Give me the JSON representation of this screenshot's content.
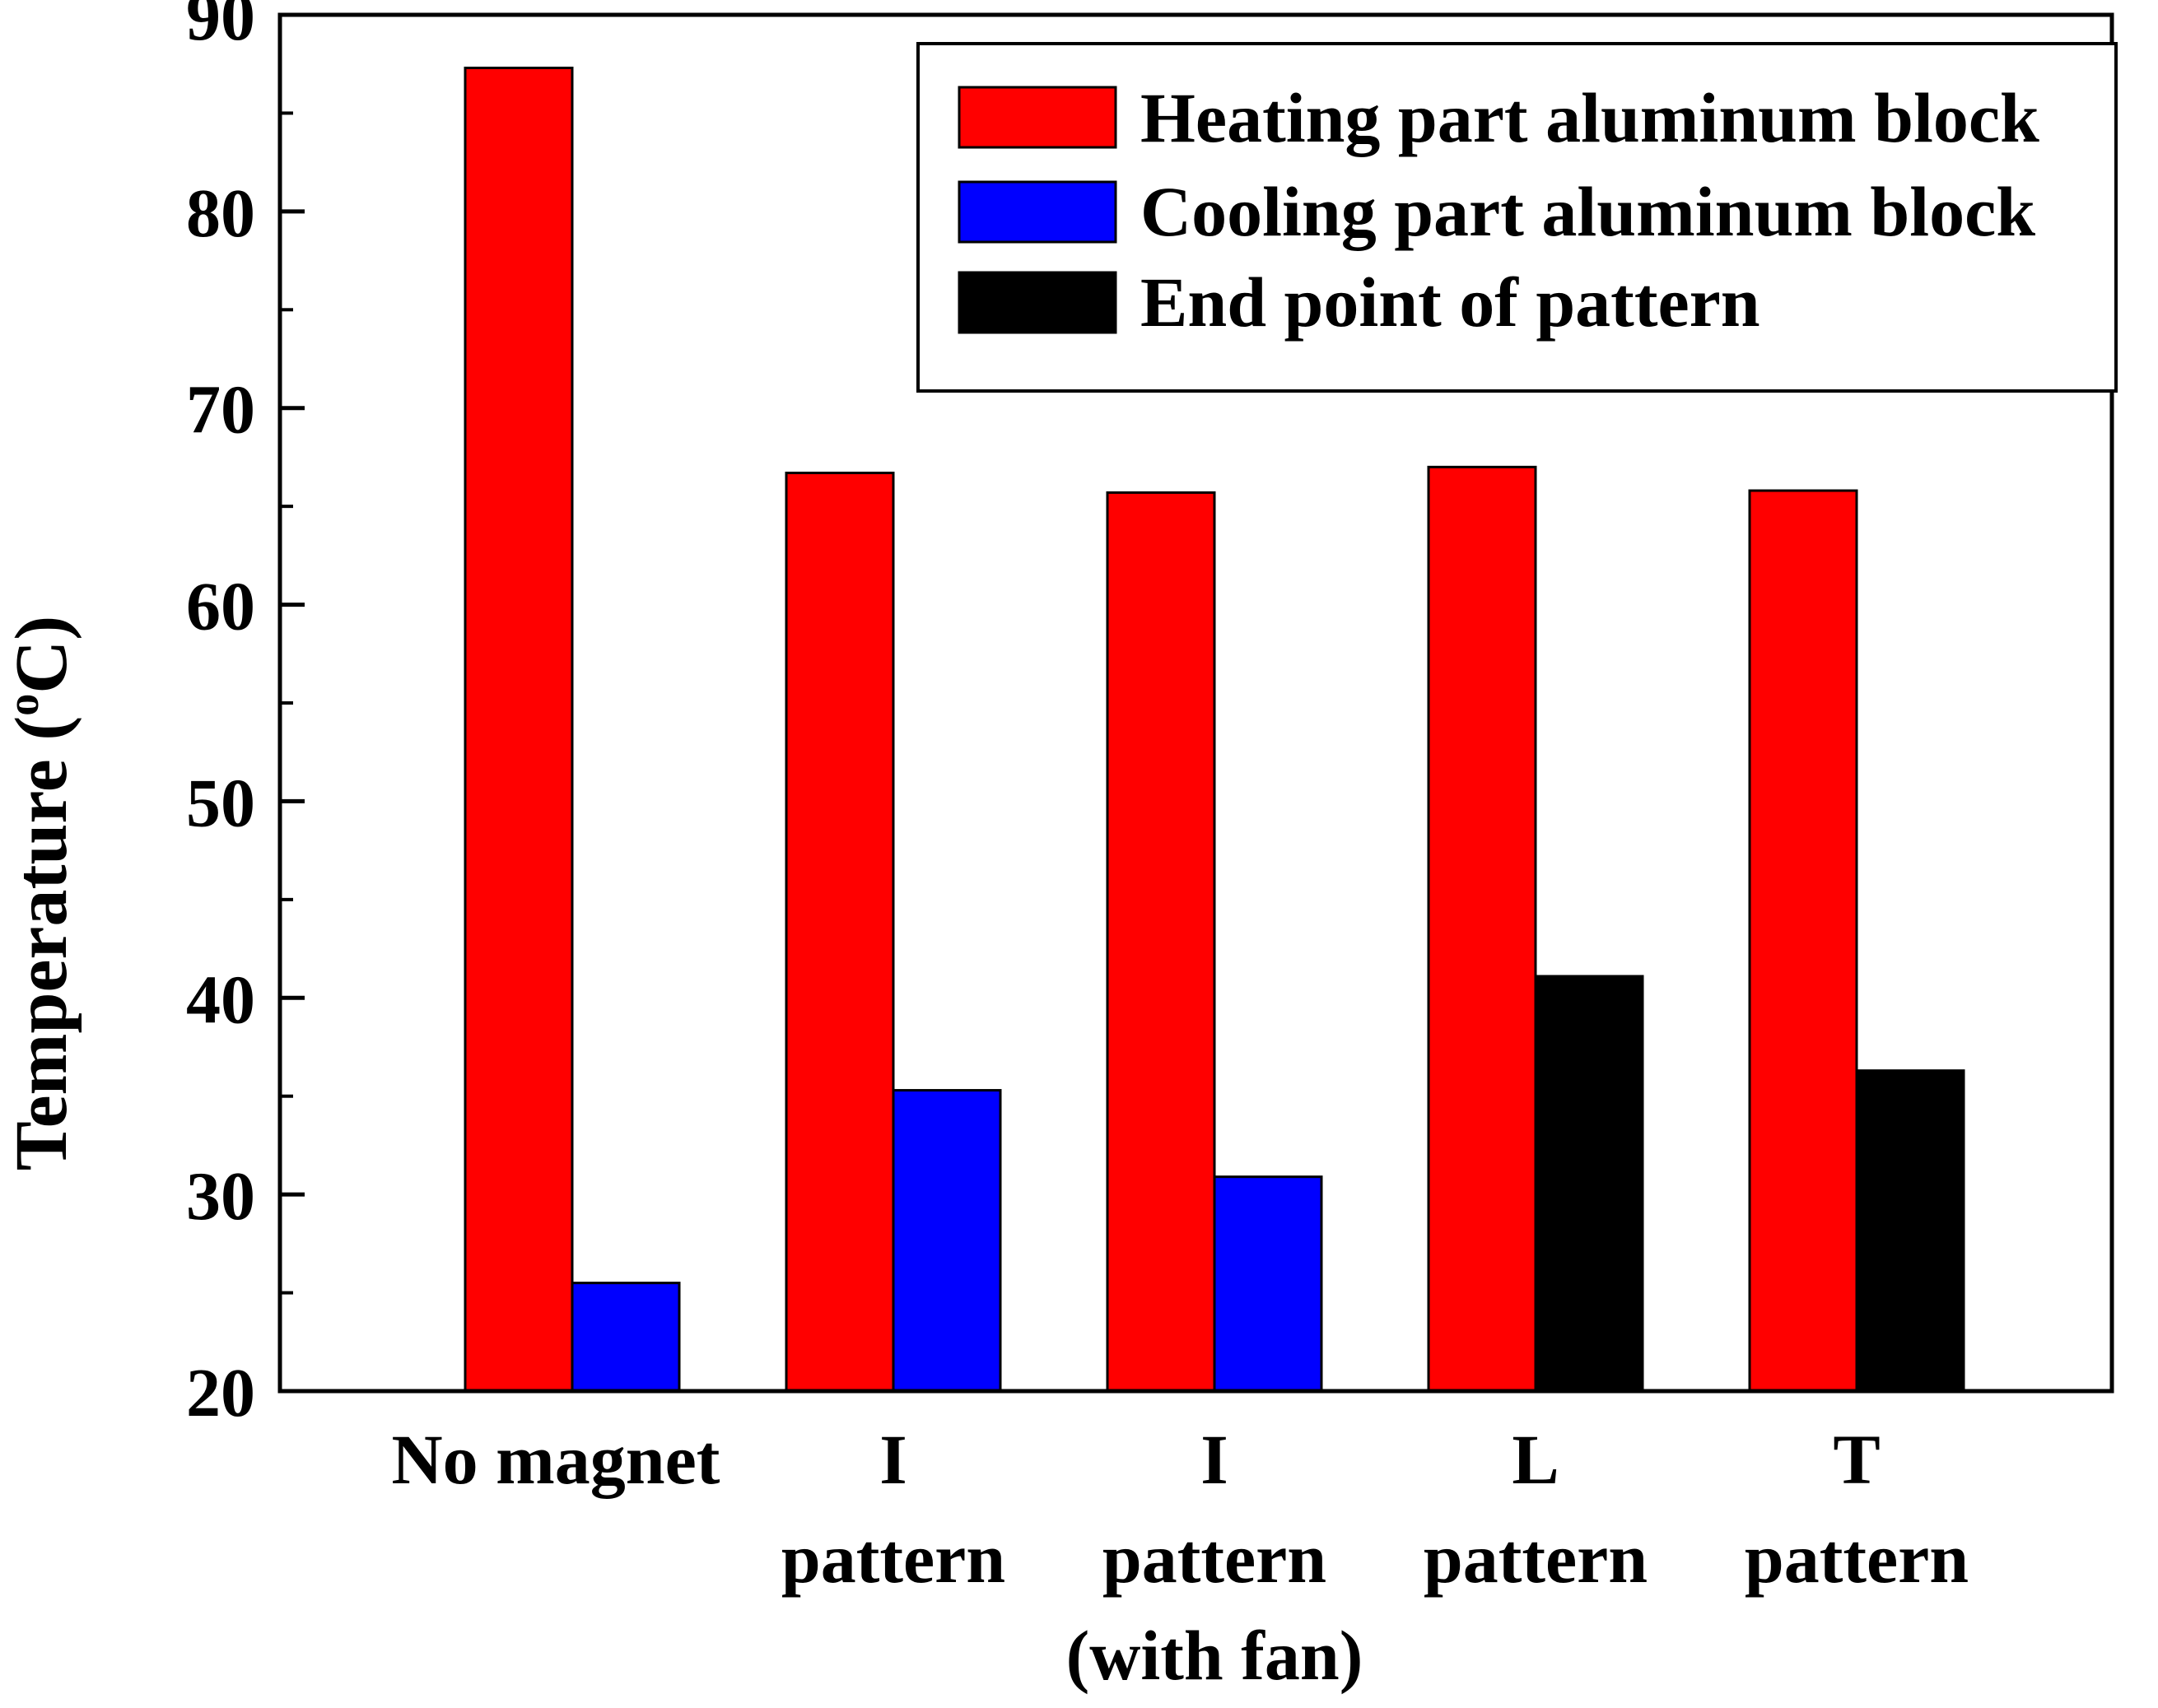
{
  "chart_data": {
    "type": "bar",
    "title": "",
    "xlabel": "",
    "ylabel": "Temperature (°C)",
    "ylabel_parts": {
      "prefix": "Temperature (",
      "degree": "o",
      "suffix": "C)"
    },
    "ylim": [
      20,
      90
    ],
    "yticks": [
      20,
      30,
      40,
      50,
      60,
      70,
      80,
      90
    ],
    "grid": false,
    "legend_position": "top-right",
    "categories": [
      {
        "lines": [
          "No magnet"
        ]
      },
      {
        "lines": [
          "I",
          "pattern"
        ]
      },
      {
        "lines": [
          "I",
          "pattern",
          "(with fan)"
        ]
      },
      {
        "lines": [
          "L",
          "pattern"
        ]
      },
      {
        "lines": [
          "T",
          "pattern"
        ]
      }
    ],
    "series": [
      {
        "name": "Heating part aluminum block",
        "color": "#ff0000",
        "values": [
          87.3,
          66.7,
          65.7,
          67.0,
          65.8
        ]
      },
      {
        "name": "Cooling part aluminum block",
        "color": "#0000ff",
        "values": [
          25.5,
          35.3,
          30.9,
          null,
          null
        ]
      },
      {
        "name": "End point of pattern",
        "color": "#000000",
        "values": [
          null,
          null,
          null,
          41.1,
          36.3
        ]
      }
    ]
  }
}
